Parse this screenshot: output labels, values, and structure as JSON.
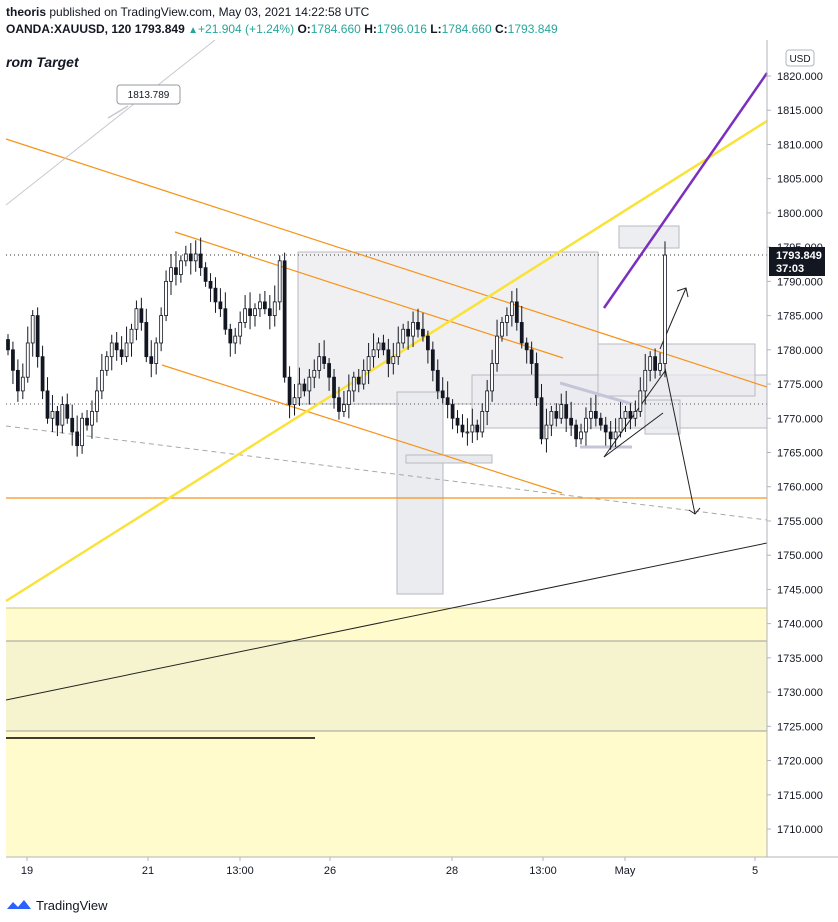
{
  "header": {
    "author": "theoris",
    "published_text": "published on TradingView.com, May 03, 2021 14:22:58 UTC",
    "symbol": "OANDA:XAUUSD, 120",
    "last": "1793.849",
    "change": "+21.904 (+1.24%)",
    "open_label": "O:",
    "open": "1784.660",
    "high_label": "H:",
    "high": "1796.016",
    "low_label": "L:",
    "low": "1784.660",
    "close_label": "C:",
    "close": "1793.849"
  },
  "chart_title": "rom Target",
  "currency_badge": "USD",
  "price_tag": "1813.789",
  "current_price_label": "1793.849",
  "countdown_label": "37:03",
  "footer": {
    "brand": "TradingView"
  },
  "colors": {
    "up": "#26a69a",
    "candle": "#131722",
    "orange": "#f7931a",
    "yellow": "#f9e23a",
    "purple": "#7b2fbf",
    "zone": "#fffbcc"
  },
  "chart_data": {
    "type": "candlestick",
    "instrument": "OANDA:XAUUSD",
    "timeframe": "120",
    "ylim": [
      1705,
      1825
    ],
    "yticks": [
      1710,
      1715,
      1720,
      1725,
      1730,
      1735,
      1740,
      1745,
      1750,
      1755,
      1760,
      1765,
      1770,
      1775,
      1780,
      1785,
      1790,
      1795,
      1800,
      1805,
      1810,
      1815,
      1820
    ],
    "xticks": [
      "19",
      "21",
      "13:00",
      "26",
      "28",
      "13:00",
      "May",
      "5"
    ],
    "closes": [
      1780,
      1777,
      1774,
      1776,
      1781,
      1785,
      1779,
      1774,
      1770,
      1771,
      1769,
      1772,
      1770,
      1768,
      1766,
      1770,
      1769,
      1771,
      1774,
      1777,
      1779,
      1781,
      1780,
      1779,
      1781,
      1783,
      1786,
      1784,
      1779,
      1778,
      1781,
      1785,
      1790,
      1792,
      1791,
      1793,
      1794,
      1793,
      1794,
      1792,
      1790,
      1789,
      1787,
      1786,
      1783,
      1781,
      1782,
      1784,
      1786,
      1785,
      1786,
      1787,
      1786,
      1785,
      1787,
      1793,
      1776,
      1772,
      1773,
      1775,
      1774,
      1776,
      1777,
      1779,
      1778,
      1776,
      1773,
      1771,
      1772,
      1774,
      1776,
      1775,
      1777,
      1779,
      1780,
      1781,
      1780,
      1778,
      1779,
      1781,
      1783,
      1782,
      1784,
      1783,
      1782,
      1780,
      1777,
      1774,
      1773,
      1772,
      1770,
      1769,
      1768,
      1768,
      1769,
      1768,
      1771,
      1774,
      1778,
      1782,
      1784,
      1785,
      1787,
      1784,
      1781,
      1780,
      1778,
      1773,
      1767,
      1769,
      1771,
      1770,
      1772,
      1770,
      1769,
      1767,
      1768,
      1770,
      1771,
      1770,
      1769,
      1768,
      1767,
      1768,
      1770,
      1771,
      1770,
      1771,
      1774,
      1777,
      1779,
      1777,
      1778,
      1793.849
    ]
  }
}
